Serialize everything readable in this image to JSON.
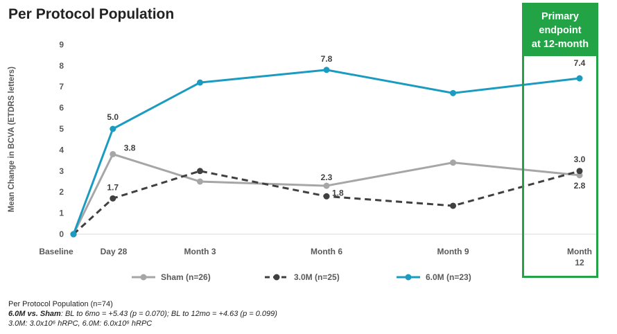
{
  "title": "Per Protocol Population",
  "endpoint_box": {
    "line1": "Primary",
    "line2": "endpoint",
    "line3": "at 12-month"
  },
  "footnotes": {
    "line1": "Per Protocol Population (n=74)",
    "line2_bold": "6.0M vs. Sham",
    "line2_rest": ": BL to 6mo = +5.43 (p = 0.070); BL to 12mo = +4.63 (p = 0.099)",
    "line3": "3.0M: 3.0x10⁶ hRPC, 6.0M: 6.0x10⁶ hRPC"
  },
  "colors": {
    "sham": "#a6a6a6",
    "m3": "#404040",
    "m6": "#1a9bbf",
    "endpoint": "#22a345"
  },
  "chart_data": {
    "type": "line",
    "title": "Per Protocol Population",
    "ylabel": "Mean Change in BCVA (ETDRS letters)",
    "xlabel": "",
    "ylim": [
      0,
      9
    ],
    "yticks": [
      0,
      1,
      2,
      3,
      4,
      5,
      6,
      7,
      8,
      9
    ],
    "categories": [
      "Baseline",
      "Day 28",
      "Month 3",
      "Month 6",
      "Month 9",
      "Month 12"
    ],
    "x_days": [
      0,
      28,
      90,
      180,
      270,
      360
    ],
    "legend_position": "bottom",
    "series": [
      {
        "name": "Sham (n=26)",
        "values": [
          0,
          3.8,
          2.5,
          2.3,
          3.4,
          2.8
        ],
        "labels": [
          "",
          "3.8",
          "",
          "2.3",
          "",
          "2.8"
        ],
        "style": "solid",
        "color": "#a6a6a6"
      },
      {
        "name": "3.0M (n=25)",
        "values": [
          0,
          1.7,
          3.0,
          1.8,
          1.35,
          3.0
        ],
        "labels": [
          "",
          "1.7",
          "",
          "1.8",
          "",
          "3.0"
        ],
        "style": "dashed",
        "color": "#404040"
      },
      {
        "name": "6.0M (n=23)",
        "values": [
          0,
          5.0,
          7.2,
          7.8,
          6.7,
          7.4
        ],
        "labels": [
          "",
          "5.0",
          "",
          "7.8",
          "",
          "7.4"
        ],
        "style": "solid",
        "color": "#1a9bbf"
      }
    ]
  }
}
